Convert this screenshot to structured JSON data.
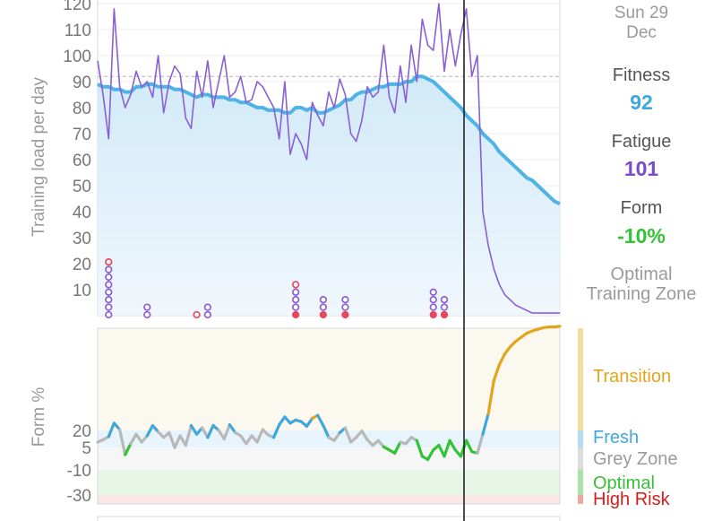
{
  "sidebar": {
    "date_day": "Sun 29",
    "date_month": "Dec",
    "fitness_label": "Fitness",
    "fitness_value": "92",
    "fatigue_label": "Fatigue",
    "fatigue_value": "101",
    "form_label": "Form",
    "form_value": "-10%",
    "zone_line1": "Optimal",
    "zone_line2": "Training Zone"
  },
  "zones": {
    "transition": "Transition",
    "fresh": "Fresh",
    "grey": "Grey Zone",
    "optimal": "Optimal",
    "high_risk": "High Risk"
  },
  "colors": {
    "fitness": "#4fb3e6",
    "fatigue": "#8b5fd4",
    "form_positive": "#3ea7dd",
    "form_grey": "#b8b8b8",
    "form_optimal": "#34c236",
    "form_transition": "#e2a51a",
    "high_risk": "#d81b1b",
    "marker_purple": "#8b5fd4",
    "marker_red": "#e8485f"
  },
  "chart_data": [
    {
      "type": "line",
      "ylabel": "Training load per day",
      "ylim": [
        0,
        120
      ],
      "yticks": [
        10,
        20,
        30,
        40,
        50,
        60,
        70,
        80,
        90,
        100,
        110,
        120
      ],
      "reference_line": 92,
      "series": [
        {
          "name": "Fitness",
          "color": "#4fb3e6",
          "values": [
            89,
            88,
            88,
            87,
            87,
            86,
            86,
            88,
            88,
            89,
            89,
            88,
            88,
            88,
            87,
            87,
            86,
            85,
            84,
            85,
            85,
            84,
            84,
            84,
            83,
            83,
            82,
            82,
            81,
            80,
            80,
            79,
            79,
            79,
            78,
            78,
            80,
            80,
            79,
            80,
            78,
            78,
            79,
            80,
            81,
            83,
            83,
            85,
            86,
            86,
            87,
            88,
            88,
            89,
            89,
            89,
            90,
            90,
            92,
            92,
            91,
            90,
            88,
            86,
            84,
            82,
            80,
            77,
            75,
            73,
            70,
            68,
            66,
            63,
            61,
            59,
            57,
            55,
            53,
            52,
            50,
            48,
            46,
            44,
            43
          ]
        },
        {
          "name": "Fatigue",
          "color": "#8b5fd4",
          "values": [
            98,
            85,
            68,
            118,
            88,
            80,
            85,
            94,
            88,
            90,
            84,
            100,
            78,
            90,
            96,
            93,
            76,
            72,
            94,
            84,
            98,
            80,
            90,
            100,
            84,
            86,
            92,
            82,
            83,
            90,
            88,
            84,
            80,
            68,
            90,
            62,
            70,
            66,
            60,
            82,
            77,
            73,
            86,
            80,
            91,
            85,
            70,
            67,
            75,
            88,
            84,
            86,
            104,
            84,
            78,
            96,
            82,
            104,
            90,
            114,
            104,
            102,
            120,
            94,
            110,
            96,
            108,
            118,
            92,
            100,
            40,
            27,
            18,
            12,
            8,
            6,
            4,
            3,
            2,
            1,
            1,
            1,
            1,
            1,
            1
          ]
        }
      ],
      "markers": [
        {
          "x": 2,
          "count": 8,
          "top_red": true,
          "bottom_red": false
        },
        {
          "x": 9,
          "count": 2,
          "top_red": false,
          "bottom_red": false
        },
        {
          "x": 18,
          "count": 1,
          "top_red": true,
          "bottom_red": false
        },
        {
          "x": 20,
          "count": 2,
          "top_red": false,
          "bottom_red": false
        },
        {
          "x": 36,
          "count": 5,
          "top_red": true,
          "bottom_red": true
        },
        {
          "x": 41,
          "count": 3,
          "top_red": false,
          "bottom_red": true
        },
        {
          "x": 45,
          "count": 3,
          "top_red": false,
          "bottom_red": true
        },
        {
          "x": 61,
          "count": 4,
          "top_red": false,
          "bottom_red": true
        },
        {
          "x": 63,
          "count": 3,
          "top_red": false,
          "bottom_red": true
        }
      ]
    },
    {
      "type": "line",
      "ylabel": "Form %",
      "yticks": [
        20,
        5,
        -10,
        -30
      ],
      "zones": [
        "Transition",
        "Fresh",
        "Grey Zone",
        "Optimal",
        "High Risk"
      ],
      "series": [
        {
          "name": "Form",
          "values": [
            -8,
            -5,
            -1,
            16,
            8,
            -24,
            -10,
            2,
            -8,
            0,
            13,
            5,
            -2,
            4,
            -15,
            0,
            -12,
            13,
            2,
            10,
            -2,
            13,
            7,
            -4,
            14,
            4,
            0,
            -10,
            0,
            -8,
            8,
            1,
            -2,
            14,
            24,
            16,
            20,
            18,
            12,
            22,
            26,
            13,
            -2,
            -6,
            4,
            10,
            -8,
            -2,
            6,
            -5,
            -12,
            -6,
            -14,
            -18,
            -22,
            -8,
            -10,
            -2,
            -6,
            -26,
            -30,
            -18,
            -12,
            -26,
            -6,
            -18,
            -26,
            -6,
            -20,
            -22,
            2,
            28,
            70,
            90,
            104,
            113,
            120,
            125,
            130,
            133,
            135,
            137,
            138,
            138,
            139
          ]
        }
      ]
    }
  ]
}
